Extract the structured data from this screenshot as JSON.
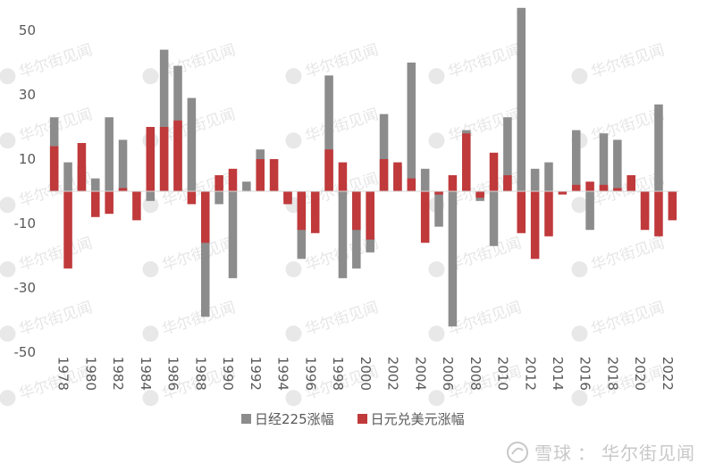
{
  "chart_data": {
    "type": "bar",
    "title": "",
    "xlabel": "",
    "ylabel": "",
    "ylim": [
      -55,
      60
    ],
    "yticks": [
      50,
      30,
      10,
      -10,
      -30,
      -50
    ],
    "categories": [
      "1978",
      "1979",
      "1980",
      "1981",
      "1982",
      "1983",
      "1984",
      "1985",
      "1986",
      "1987",
      "1988",
      "1989",
      "1990",
      "1991",
      "1992",
      "1993",
      "1994",
      "1995",
      "1996",
      "1997",
      "1998",
      "1999",
      "2000",
      "2001",
      "2002",
      "2003",
      "2004",
      "2005",
      "2006",
      "2007",
      "2008",
      "2009",
      "2010",
      "2011",
      "2012",
      "2013",
      "2014",
      "2015",
      "2016",
      "2017",
      "2018",
      "2019",
      "2020",
      "2021",
      "2022",
      "2023"
    ],
    "xtick_labels": [
      "1978",
      "1980",
      "1982",
      "1984",
      "1986",
      "1988",
      "1990",
      "1992",
      "1994",
      "1996",
      "1998",
      "2000",
      "2002",
      "2004",
      "2006",
      "2008",
      "2010",
      "2012",
      "2014",
      "2016",
      "2018",
      "2020",
      "2022"
    ],
    "series": [
      {
        "name": "日经225涨幅",
        "color": "#8c8c8c",
        "values": [
          23,
          9,
          8,
          4,
          23,
          16,
          -1,
          -3,
          44,
          39,
          29,
          -39,
          -4,
          -27,
          3,
          13,
          1,
          -3,
          -21,
          -9,
          36,
          -27,
          -24,
          -19,
          24,
          8,
          40,
          7,
          -11,
          -42,
          19,
          -3,
          -17,
          23,
          57,
          7,
          9,
          0,
          19,
          -12,
          18,
          16,
          5,
          -9,
          27,
          -1
        ]
      },
      {
        "name": "日元兑美元涨幅",
        "color": "#c0393b",
        "values": [
          14,
          -24,
          15,
          -8,
          -7,
          1,
          -9,
          20,
          20,
          22,
          -4,
          -16,
          5,
          7,
          0,
          10,
          10,
          -4,
          -12,
          -13,
          13,
          9,
          -12,
          -15,
          10,
          9,
          4,
          -16,
          -1,
          5,
          18,
          -2,
          12,
          5,
          -13,
          -21,
          -14,
          -1,
          2,
          3,
          2,
          1,
          5,
          -12,
          -14,
          -9
        ]
      }
    ],
    "legend_position": "bottom-center",
    "grid": false
  },
  "watermark_text": "华尔街见闻",
  "footer": {
    "brand": "雪球",
    "separator": "：",
    "source": "华尔街见闻"
  }
}
